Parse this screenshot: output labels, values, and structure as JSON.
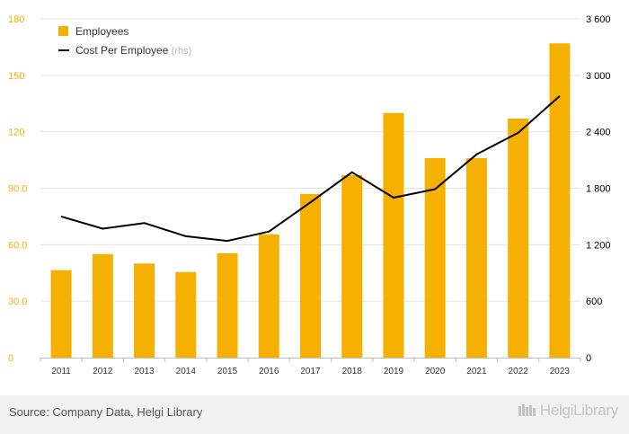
{
  "chart_data": {
    "type": "bar+line",
    "categories": [
      "2011",
      "2012",
      "2013",
      "2014",
      "2015",
      "2016",
      "2017",
      "2018",
      "2019",
      "2020",
      "2021",
      "2022",
      "2023"
    ],
    "series": [
      {
        "name": "Employees",
        "type": "bar",
        "axis": "left",
        "color": "#f5b000",
        "values": [
          46.5,
          55,
          50,
          45.5,
          55.5,
          65.5,
          87,
          97,
          130,
          106,
          106,
          127,
          167
        ]
      },
      {
        "name": "Cost Per Employee",
        "name_suffix": "(rhs)",
        "type": "line",
        "axis": "right",
        "color": "#000000",
        "values": [
          1500,
          1370,
          1430,
          1290,
          1240,
          1340,
          1650,
          1970,
          1700,
          1790,
          2160,
          2390,
          2780
        ]
      }
    ],
    "y_left": {
      "ticks": [
        "0",
        "30.0",
        "60.0",
        "90.0",
        "120",
        "150",
        "180"
      ],
      "range": [
        0,
        180
      ],
      "color": "#f5b000"
    },
    "y_right": {
      "ticks": [
        "0",
        "600",
        "1 200",
        "1 800",
        "2 400",
        "3 000",
        "3 600"
      ],
      "range": [
        0,
        3600
      ],
      "color": "#000000"
    },
    "legend": {
      "position": "top-left"
    },
    "grid": true
  },
  "footer": {
    "source": "Source: Company Data, Helgi Library",
    "brand": "HelgiLibrary"
  }
}
